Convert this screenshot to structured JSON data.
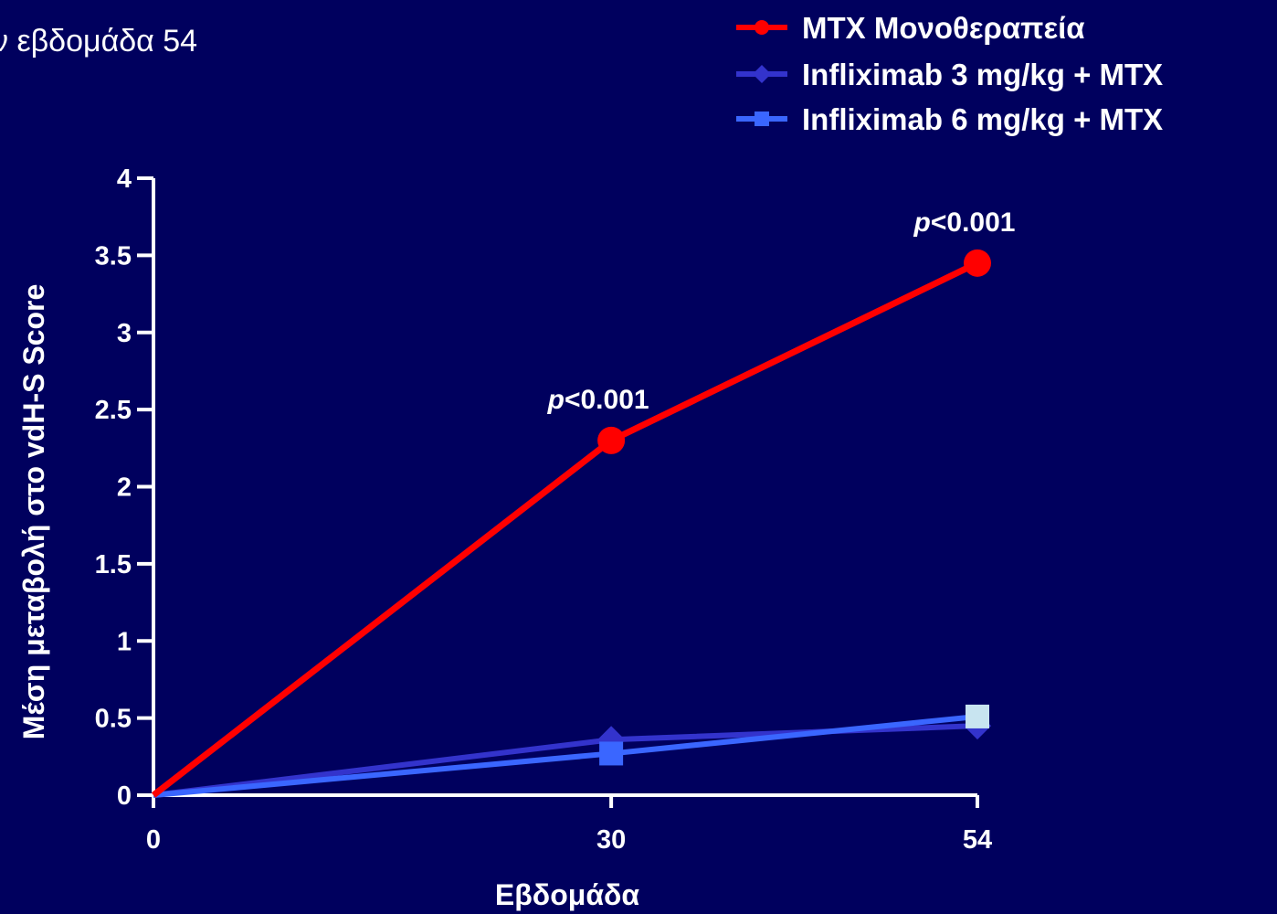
{
  "page": {
    "background": "#00005e",
    "title_fragment": "ν εβδομάδα 54"
  },
  "chart_data": {
    "type": "line",
    "xlabel": "Εβδομάδα",
    "ylabel": "Μέση μεταβολή στο vdH-S Score",
    "x_ticks": [
      0,
      30,
      54
    ],
    "y_ticks": [
      "0",
      "0.5",
      "1",
      "1.5",
      "2",
      "2.5",
      "3",
      "3.5",
      "4"
    ],
    "y_tick_values": [
      0,
      0.5,
      1,
      1.5,
      2,
      2.5,
      3,
      3.5,
      4
    ],
    "xlim": [
      0,
      54
    ],
    "ylim": [
      0,
      4
    ],
    "legend_position": "top-right",
    "grid": false,
    "series": [
      {
        "name": "MTX Μονοθεραπεία",
        "marker": "circle",
        "color": "#ff0000",
        "x": [
          0,
          30,
          54
        ],
        "y": [
          0,
          2.3,
          3.45
        ]
      },
      {
        "name": "Infliximab 3 mg/kg + MTX",
        "marker": "diamond",
        "color": "#3333cc",
        "x": [
          0,
          30,
          54
        ],
        "y": [
          0,
          0.36,
          0.45
        ]
      },
      {
        "name": "Infliximab 6 mg/kg + MTX",
        "marker": "square",
        "color": "#3a66ff",
        "last_marker_color": "#c8e4f0",
        "x": [
          0,
          30,
          54
        ],
        "y": [
          0,
          0.27,
          0.51
        ]
      }
    ],
    "annotations": [
      {
        "x": 30,
        "p_letter": "p",
        "text": "<0.001"
      },
      {
        "x": 54,
        "p_letter": "p",
        "text": "<0.001"
      }
    ]
  }
}
